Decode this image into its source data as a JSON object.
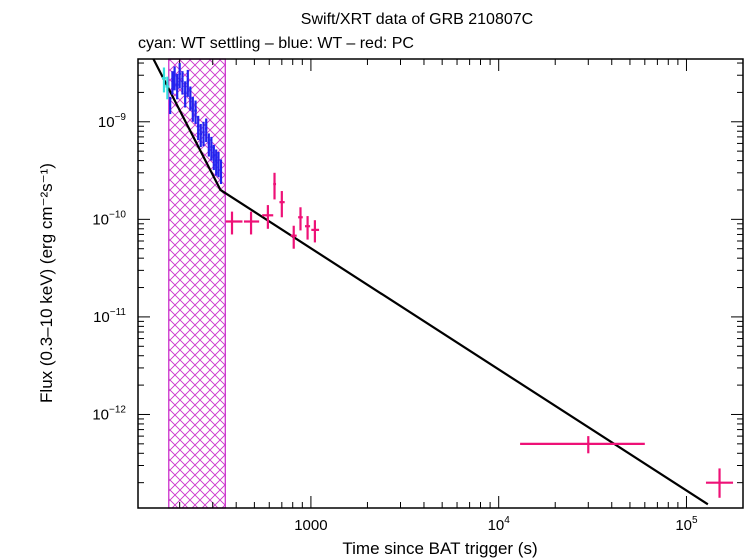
{
  "chart_data": {
    "type": "scatter",
    "title": "Swift/XRT data of GRB 210807C",
    "subtitle": "cyan: WT settling – blue: WT – red: PC",
    "xlabel": "Time since BAT trigger (s)",
    "ylabel": "Flux (0.3–10 keV) (erg cm⁻²s⁻¹)",
    "x_scale": "log",
    "y_scale": "log",
    "xlim": [
      120,
      200000
    ],
    "ylim": [
      1.1e-13,
      4.4e-09
    ],
    "x_ticks": [
      {
        "value": 1000,
        "base": "1000",
        "exp": ""
      },
      {
        "value": 10000,
        "base": "10",
        "exp": "4"
      },
      {
        "value": 100000,
        "base": "10",
        "exp": "5"
      }
    ],
    "y_ticks": [
      {
        "value": 1e-09,
        "base": "10",
        "exp": "−9"
      },
      {
        "value": 1e-10,
        "base": "10",
        "exp": "−10"
      },
      {
        "value": 1e-11,
        "base": "10",
        "exp": "−11"
      },
      {
        "value": 1e-12,
        "base": "10",
        "exp": "−12"
      }
    ],
    "shaded_region": {
      "x": [
        175,
        350
      ],
      "color": "#cc33cc"
    },
    "series": [
      {
        "name": "WT settling",
        "color": "#33dddd",
        "points": [
          {
            "x": 165,
            "y": 2.8e-09,
            "xerr": [
              4,
              4
            ],
            "yerr": [
              8e-10,
              8e-10
            ]
          },
          {
            "x": 172,
            "y": 2.3e-09,
            "xerr": [
              4,
              4
            ],
            "yerr": [
              6e-10,
              6e-10
            ]
          }
        ]
      },
      {
        "name": "WT",
        "color": "#2222ee",
        "points": [
          {
            "x": 178,
            "y": 1.5e-09,
            "xerr": [
              2,
              2
            ],
            "yerr": [
              3e-10,
              3e-10
            ]
          },
          {
            "x": 183,
            "y": 2.6e-09,
            "xerr": [
              2,
              2
            ],
            "yerr": [
              7e-10,
              7e-10
            ]
          },
          {
            "x": 188,
            "y": 2.9e-09,
            "xerr": [
              2,
              2
            ],
            "yerr": [
              8e-10,
              8e-10
            ]
          },
          {
            "x": 194,
            "y": 2.4e-09,
            "xerr": [
              3,
              3
            ],
            "yerr": [
              7e-10,
              7e-10
            ]
          },
          {
            "x": 200,
            "y": 3.1e-09,
            "xerr": [
              3,
              3
            ],
            "yerr": [
              9e-10,
              9e-10
            ]
          },
          {
            "x": 207,
            "y": 2.6e-09,
            "xerr": [
              3,
              3
            ],
            "yerr": [
              7e-10,
              7e-10
            ]
          },
          {
            "x": 214,
            "y": 2e-09,
            "xerr": [
              3,
              3
            ],
            "yerr": [
              6e-10,
              6e-10
            ]
          },
          {
            "x": 221,
            "y": 2.6e-09,
            "xerr": [
              3,
              3
            ],
            "yerr": [
              8e-10,
              8e-10
            ]
          },
          {
            "x": 228,
            "y": 1.8e-09,
            "xerr": [
              3,
              3
            ],
            "yerr": [
              5e-10,
              5e-10
            ]
          },
          {
            "x": 235,
            "y": 1.4e-09,
            "xerr": [
              3,
              3
            ],
            "yerr": [
              4e-10,
              4e-10
            ]
          },
          {
            "x": 243,
            "y": 1.3e-09,
            "xerr": [
              4,
              4
            ],
            "yerr": [
              3.5e-10,
              3.5e-10
            ]
          },
          {
            "x": 251,
            "y": 9e-10,
            "xerr": [
              4,
              4
            ],
            "yerr": [
              2.5e-10,
              2.5e-10
            ]
          },
          {
            "x": 259,
            "y": 7.5e-10,
            "xerr": [
              4,
              4
            ],
            "yerr": [
              2e-10,
              2e-10
            ]
          },
          {
            "x": 268,
            "y": 7.8e-10,
            "xerr": [
              4,
              4
            ],
            "yerr": [
              2.2e-10,
              2.2e-10
            ]
          },
          {
            "x": 277,
            "y": 8.5e-10,
            "xerr": [
              4,
              4
            ],
            "yerr": [
              2.3e-10,
              2.3e-10
            ]
          },
          {
            "x": 286,
            "y": 6e-10,
            "xerr": [
              4,
              4
            ],
            "yerr": [
              1.6e-10,
              1.6e-10
            ]
          },
          {
            "x": 295,
            "y": 5.5e-10,
            "xerr": [
              4,
              4
            ],
            "yerr": [
              1.5e-10,
              1.5e-10
            ]
          },
          {
            "x": 304,
            "y": 4.5e-10,
            "xerr": [
              4,
              4
            ],
            "yerr": [
              1.3e-10,
              1.3e-10
            ]
          },
          {
            "x": 313,
            "y": 4e-10,
            "xerr": [
              4,
              4
            ],
            "yerr": [
              1.2e-10,
              1.2e-10
            ]
          },
          {
            "x": 322,
            "y": 3.8e-10,
            "xerr": [
              4,
              4
            ],
            "yerr": [
              1.1e-10,
              1.1e-10
            ]
          },
          {
            "x": 332,
            "y": 3.2e-10,
            "xerr": [
              4,
              4
            ],
            "yerr": [
              9e-11,
              9e-11
            ]
          }
        ]
      },
      {
        "name": "PC",
        "color": "#ee1177",
        "points": [
          {
            "x": 380,
            "y": 9.5e-11,
            "xerr": [
              28,
              52
            ],
            "yerr": [
              2.5e-11,
              2.5e-11
            ]
          },
          {
            "x": 480,
            "y": 9.5e-11,
            "xerr": [
              40,
              50
            ],
            "yerr": [
              2.5e-11,
              2.5e-11
            ]
          },
          {
            "x": 590,
            "y": 1.1e-10,
            "xerr": [
              40,
              40
            ],
            "yerr": [
              3e-11,
              3e-11
            ]
          },
          {
            "x": 640,
            "y": 2.3e-10,
            "xerr": [
              10,
              12
            ],
            "yerr": [
              7e-11,
              7e-11
            ]
          },
          {
            "x": 700,
            "y": 1.5e-10,
            "xerr": [
              20,
              25
            ],
            "yerr": [
              4.5e-11,
              4.5e-11
            ]
          },
          {
            "x": 810,
            "y": 6.8e-11,
            "xerr": [
              30,
              30
            ],
            "yerr": [
              1.8e-11,
              1.8e-11
            ]
          },
          {
            "x": 880,
            "y": 1.05e-10,
            "xerr": [
              25,
              25
            ],
            "yerr": [
              2.8e-11,
              2.8e-11
            ]
          },
          {
            "x": 960,
            "y": 8.5e-11,
            "xerr": [
              30,
              30
            ],
            "yerr": [
              2.3e-11,
              2.3e-11
            ]
          },
          {
            "x": 1050,
            "y": 7.8e-11,
            "xerr": [
              45,
              55
            ],
            "yerr": [
              2e-11,
              2e-11
            ]
          },
          {
            "x": 30000,
            "y": 5e-13,
            "xerr": [
              17000,
              30000
            ],
            "yerr": [
              1e-13,
              1e-13
            ]
          },
          {
            "x": 150000,
            "y": 2e-13,
            "xerr": [
              23000,
              27000
            ],
            "yerr": [
              6e-14,
              8e-14
            ]
          }
        ]
      }
    ],
    "model": {
      "color": "#000000",
      "points": [
        {
          "x": 145,
          "y": 4.4e-09
        },
        {
          "x": 330,
          "y": 2e-10
        },
        {
          "x": 130000,
          "y": 1.2e-13
        }
      ]
    }
  }
}
